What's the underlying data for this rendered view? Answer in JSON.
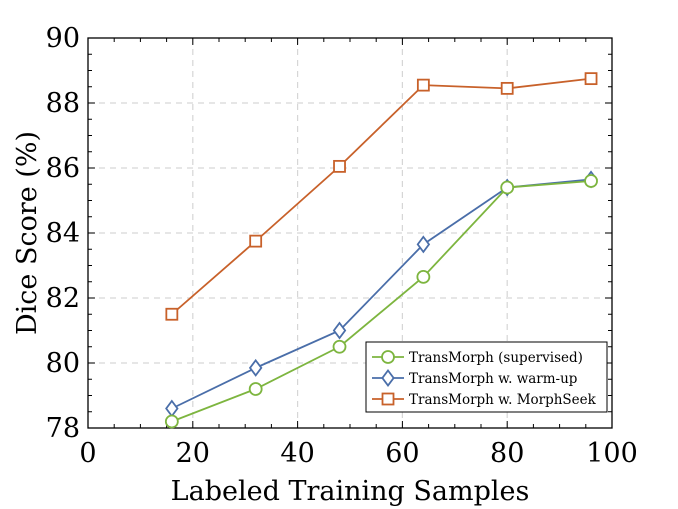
{
  "chart_data": {
    "type": "line",
    "title": "",
    "xlabel": "Labeled Training Samples",
    "ylabel": "Dice Score (%)",
    "xlim": [
      0,
      100
    ],
    "ylim": [
      78,
      90
    ],
    "xticks": [
      0,
      20,
      40,
      60,
      80,
      100
    ],
    "yticks": [
      78,
      80,
      82,
      84,
      86,
      88,
      90
    ],
    "grid": true,
    "legend_position": "bottom-right",
    "x": [
      16,
      32,
      48,
      64,
      80,
      96
    ],
    "series": [
      {
        "name": "TransMorph (supervised)",
        "marker": "circle",
        "color": "#7db53f",
        "values": [
          78.2,
          79.2,
          80.5,
          82.65,
          85.4,
          85.6
        ]
      },
      {
        "name": "TransMorph w. warm-up",
        "marker": "diamond",
        "color": "#4a6ea9",
        "values": [
          78.6,
          79.85,
          81.0,
          83.65,
          85.4,
          85.65
        ]
      },
      {
        "name": "TransMorph w. MorphSeek",
        "marker": "square",
        "color": "#c8612a",
        "values": [
          81.5,
          83.75,
          86.05,
          88.55,
          88.45,
          88.75
        ]
      }
    ]
  }
}
